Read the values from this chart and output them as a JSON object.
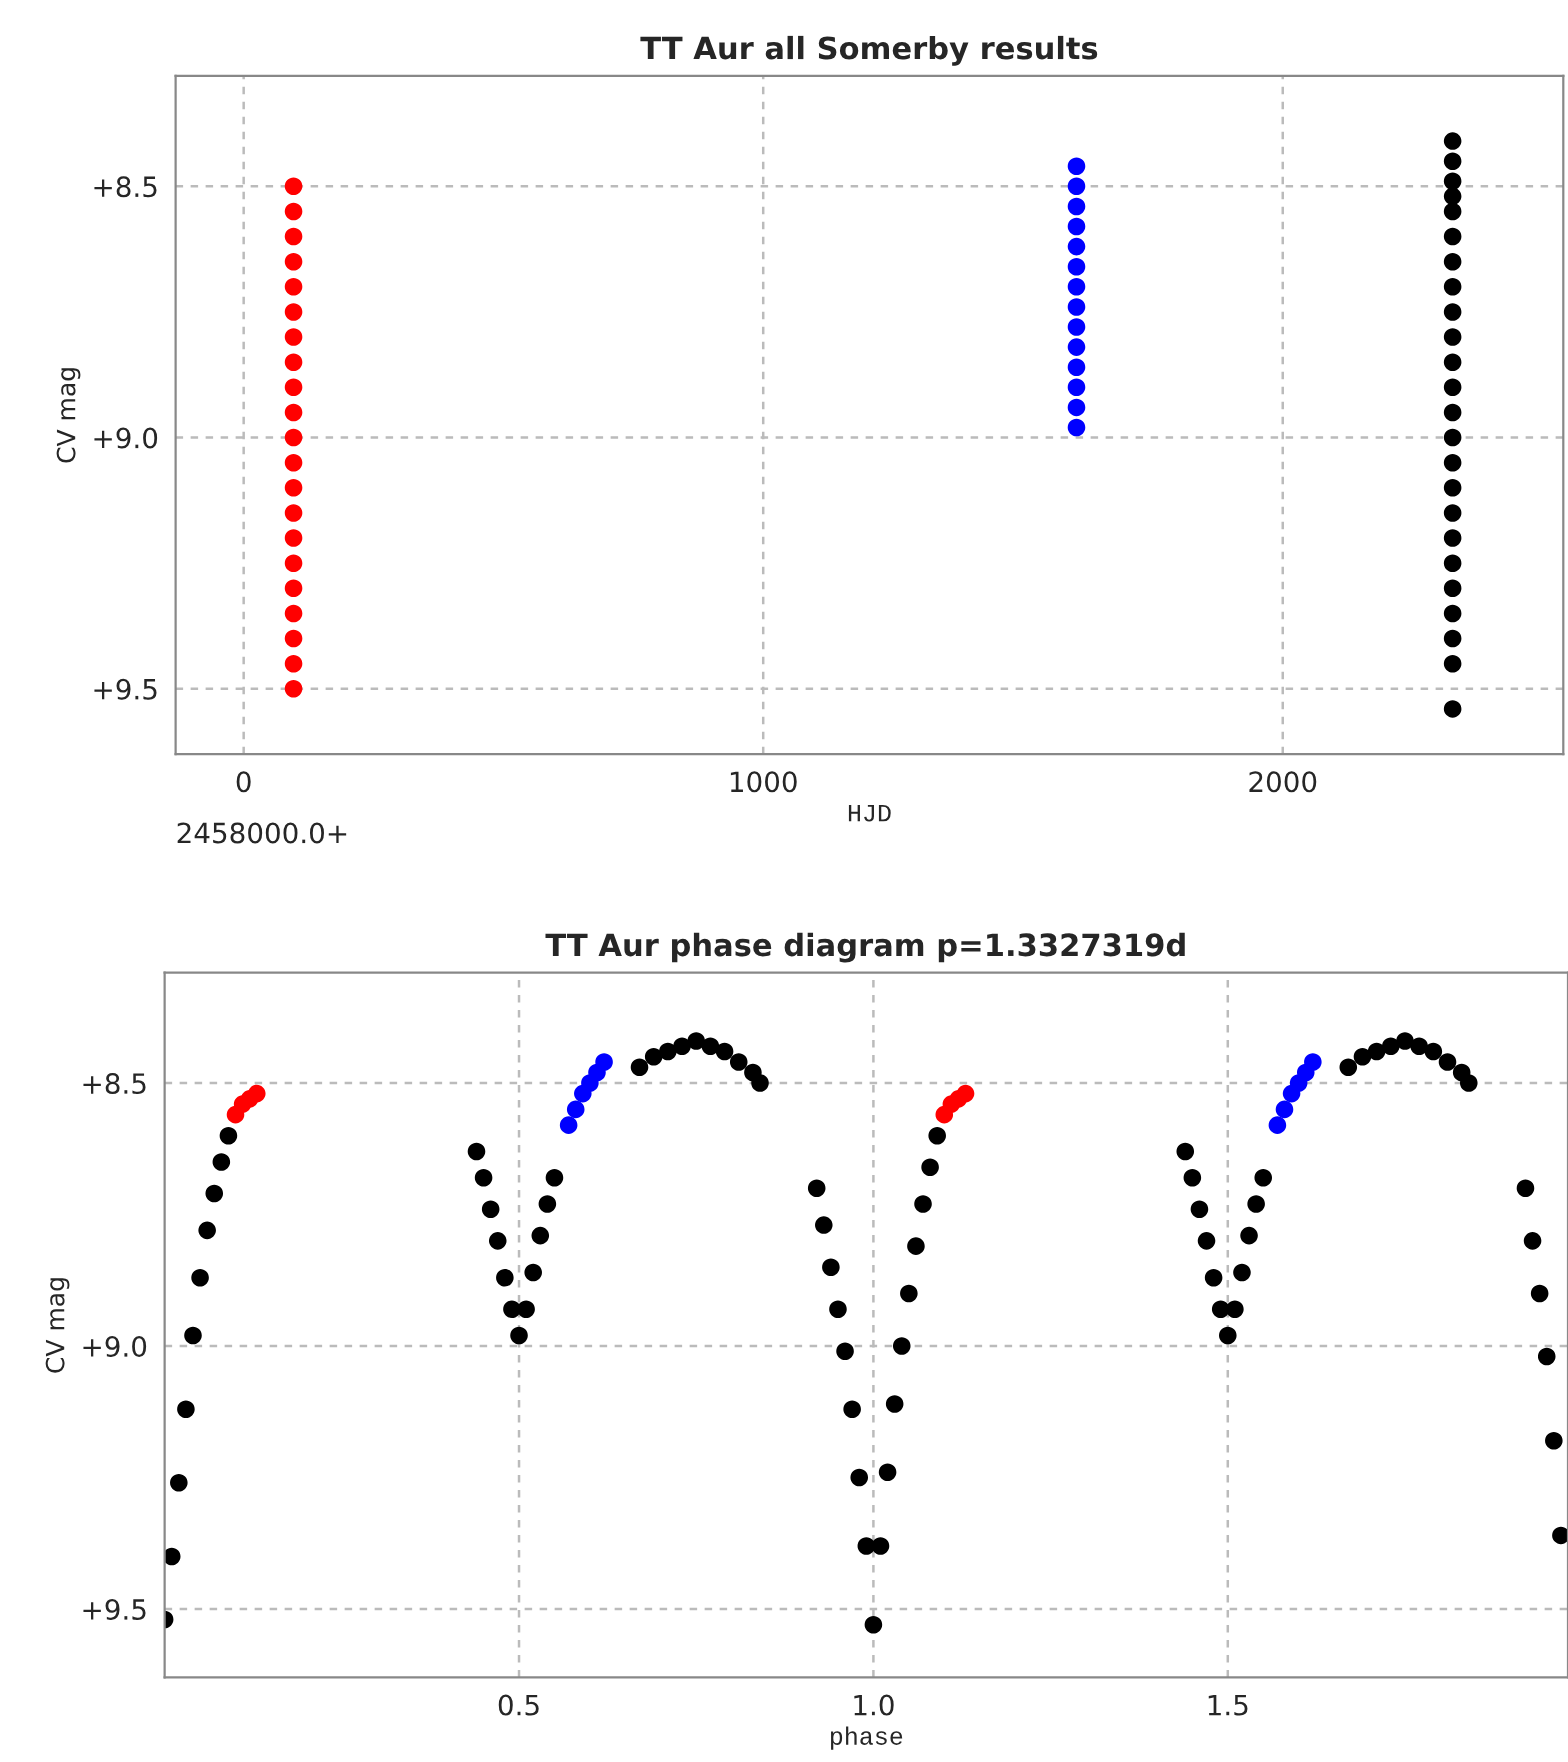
{
  "chart_data": [
    {
      "type": "scatter",
      "title": "TT Aur all Somerby results",
      "xlabel": "HJD",
      "ylabel": "CV mag",
      "xlim": [
        -131,
        2540
      ],
      "xticks": [
        0,
        1000,
        2000
      ],
      "ylim": [
        9.63,
        8.28
      ],
      "yticks": [
        {
          "value": 8.5,
          "label": "+8.5"
        },
        {
          "value": 9.0,
          "label": "+9.0"
        },
        {
          "value": 9.5,
          "label": "+9.5"
        }
      ],
      "grid": true,
      "marker": "circle",
      "annotations": [
        "2458000.0+"
      ],
      "series": [
        {
          "color": "#ff0000",
          "x": [
            96,
            96,
            96,
            96,
            96,
            96,
            96,
            96,
            96,
            96,
            96,
            96,
            96,
            96,
            96,
            96,
            96,
            96,
            96,
            96,
            96
          ],
          "values": [
            8.5,
            8.55,
            8.6,
            8.65,
            8.7,
            8.75,
            8.8,
            8.85,
            8.9,
            8.95,
            9.0,
            9.05,
            9.1,
            9.15,
            9.2,
            9.25,
            9.3,
            9.35,
            9.4,
            9.45,
            9.5
          ]
        },
        {
          "color": "#0000ff",
          "x": [
            1603,
            1603,
            1603,
            1603,
            1603,
            1603,
            1603,
            1603,
            1603,
            1603,
            1603,
            1603,
            1603,
            1603
          ],
          "values": [
            8.46,
            8.5,
            8.54,
            8.58,
            8.62,
            8.66,
            8.7,
            8.74,
            8.78,
            8.82,
            8.86,
            8.9,
            8.94,
            8.98
          ]
        },
        {
          "color": "#000000",
          "x": [
            2327,
            2327,
            2327,
            2327,
            2327,
            2327,
            2327,
            2327,
            2327,
            2327,
            2327,
            2327,
            2327,
            2327,
            2327,
            2327,
            2327,
            2327,
            2327,
            2327,
            2327,
            2327,
            2327,
            2327
          ],
          "values": [
            8.41,
            8.45,
            8.49,
            8.52,
            8.55,
            8.6,
            8.65,
            8.7,
            8.75,
            8.8,
            8.85,
            8.9,
            8.95,
            9.0,
            9.05,
            9.1,
            9.15,
            9.2,
            9.25,
            9.3,
            9.35,
            9.4,
            9.45,
            9.54
          ]
        }
      ]
    },
    {
      "type": "scatter",
      "title": "TT Aur phase diagram p=1.3327319d",
      "xlabel": "phase",
      "ylabel": "CV mag",
      "xlim": [
        0,
        1.98
      ],
      "xticks": [
        {
          "value": 0.5,
          "label": "0.5"
        },
        {
          "value": 1.0,
          "label": "1.0"
        },
        {
          "value": 1.5,
          "label": "1.5"
        }
      ],
      "ylim": [
        9.63,
        8.29
      ],
      "yticks": [
        {
          "value": 8.5,
          "label": "+8.5"
        },
        {
          "value": 9.0,
          "label": "+9.0"
        },
        {
          "value": 9.5,
          "label": "+9.5"
        }
      ],
      "grid": true,
      "marker": "circle",
      "series": [
        {
          "color": "#000000",
          "x": [
            0.0,
            0.01,
            0.02,
            0.03,
            0.04,
            0.05,
            0.06,
            0.07,
            0.08,
            0.09,
            0.44,
            0.45,
            0.46,
            0.47,
            0.48,
            0.49,
            0.5,
            0.51,
            0.52,
            0.53,
            0.54,
            0.55,
            0.67,
            0.69,
            0.71,
            0.73,
            0.75,
            0.77,
            0.79,
            0.81,
            0.83,
            0.84,
            0.92,
            0.93,
            0.94,
            0.95,
            0.96,
            0.97,
            0.98,
            0.99,
            1.0,
            1.01,
            1.02,
            1.03,
            1.04,
            1.05,
            1.06,
            1.07,
            1.08,
            1.09,
            1.44,
            1.45,
            1.46,
            1.47,
            1.48,
            1.49,
            1.5,
            1.51,
            1.52,
            1.53,
            1.54,
            1.55,
            1.67,
            1.69,
            1.71,
            1.73,
            1.75,
            1.77,
            1.79,
            1.81,
            1.83,
            1.84,
            1.92,
            1.93,
            1.94,
            1.95,
            1.96,
            1.97
          ],
          "values": [
            9.52,
            9.4,
            9.26,
            9.12,
            8.98,
            8.87,
            8.78,
            8.71,
            8.65,
            8.6,
            8.63,
            8.68,
            8.74,
            8.8,
            8.87,
            8.93,
            8.98,
            8.93,
            8.86,
            8.79,
            8.73,
            8.68,
            8.47,
            8.45,
            8.44,
            8.43,
            8.42,
            8.43,
            8.44,
            8.46,
            8.48,
            8.5,
            8.7,
            8.77,
            8.85,
            8.93,
            9.01,
            9.12,
            9.25,
            9.38,
            9.53,
            9.38,
            9.24,
            9.11,
            9.0,
            8.9,
            8.81,
            8.73,
            8.66,
            8.6,
            8.63,
            8.68,
            8.74,
            8.8,
            8.87,
            8.93,
            8.98,
            8.93,
            8.86,
            8.79,
            8.73,
            8.68,
            8.47,
            8.45,
            8.44,
            8.43,
            8.42,
            8.43,
            8.44,
            8.46,
            8.48,
            8.5,
            8.7,
            8.8,
            8.9,
            9.02,
            9.18,
            9.36
          ]
        },
        {
          "color": "#ff0000",
          "x": [
            0.1,
            0.11,
            0.12,
            0.13,
            1.1,
            1.11,
            1.12,
            1.13
          ],
          "values": [
            8.56,
            8.54,
            8.53,
            8.52,
            8.56,
            8.54,
            8.53,
            8.52
          ]
        },
        {
          "color": "#0000ff",
          "x": [
            0.57,
            0.58,
            0.59,
            0.6,
            0.61,
            0.62,
            1.57,
            1.58,
            1.59,
            1.6,
            1.61,
            1.62
          ],
          "values": [
            8.58,
            8.55,
            8.52,
            8.5,
            8.48,
            8.46,
            8.58,
            8.55,
            8.52,
            8.5,
            8.48,
            8.46
          ]
        }
      ]
    }
  ]
}
